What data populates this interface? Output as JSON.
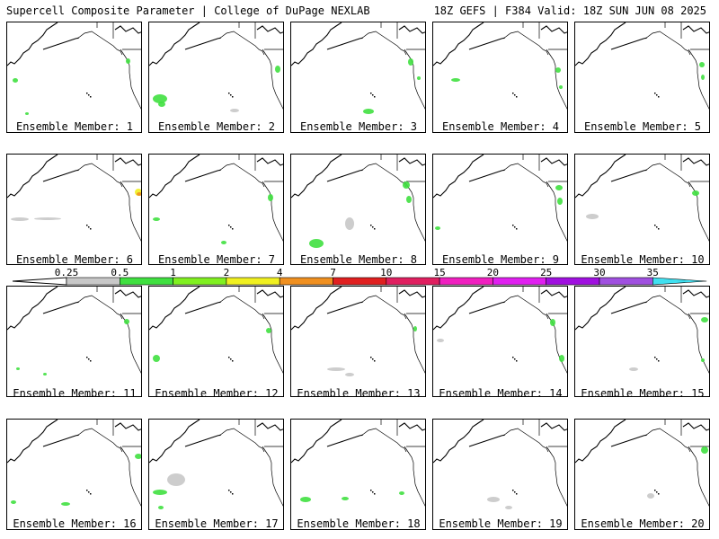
{
  "header": {
    "title": "Supercell Composite Parameter | College of DuPage NEXLAB",
    "run_info": "18Z GEFS | F384 Valid: 18Z SUN JUN 08 2025"
  },
  "colorbar": {
    "labels": [
      "0.25",
      "0.5",
      "1",
      "2",
      "4",
      "7",
      "10",
      "15",
      "20",
      "25",
      "30",
      "35"
    ],
    "colors": [
      "#c8c8c8",
      "#40e040",
      "#80f020",
      "#f0f020",
      "#f09020",
      "#e02020",
      "#e02060",
      "#f020c0",
      "#e020f0",
      "#a010e0",
      "#a050e0",
      "#40e0f0"
    ]
  },
  "panels": [
    {
      "caption": "Ensemble Member: 1"
    },
    {
      "caption": "Ensemble Member: 2"
    },
    {
      "caption": "Ensemble Member: 3"
    },
    {
      "caption": "Ensemble Member: 4"
    },
    {
      "caption": "Ensemble Member: 5"
    },
    {
      "caption": "Ensemble Member: 6"
    },
    {
      "caption": "Ensemble Member: 7"
    },
    {
      "caption": "Ensemble Member: 8"
    },
    {
      "caption": "Ensemble Member: 9"
    },
    {
      "caption": "Ensemble Member: 10"
    },
    {
      "caption": "Ensemble Member: 11"
    },
    {
      "caption": "Ensemble Member: 12"
    },
    {
      "caption": "Ensemble Member: 13"
    },
    {
      "caption": "Ensemble Member: 14"
    },
    {
      "caption": "Ensemble Member: 15"
    },
    {
      "caption": "Ensemble Member: 16"
    },
    {
      "caption": "Ensemble Member: 17"
    },
    {
      "caption": "Ensemble Member: 18"
    },
    {
      "caption": "Ensemble Member: 19"
    },
    {
      "caption": "Ensemble Member: 20"
    }
  ]
}
